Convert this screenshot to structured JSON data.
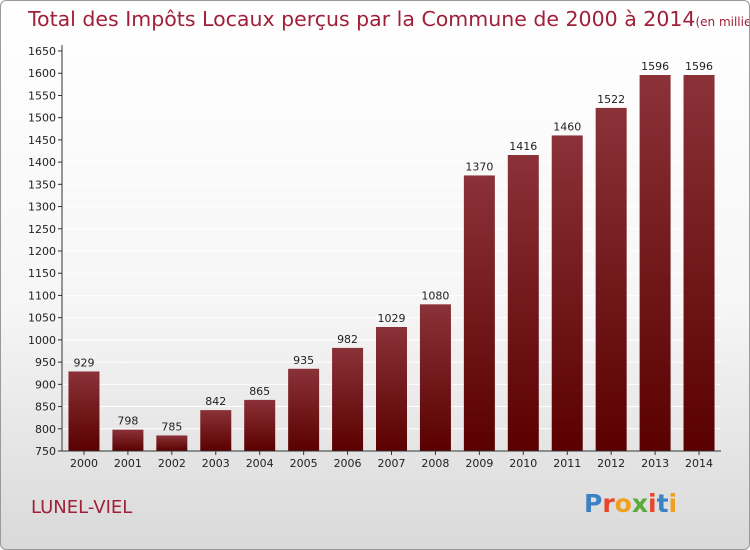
{
  "title": "Total des Impôts Locaux perçus par la Commune de 2000 à 2014",
  "unit": "(en milliers d'€)",
  "commune": "LUNEL-VIEL",
  "logo": {
    "text": "Proxiti",
    "colors": [
      "#3b82c4",
      "#e8462b",
      "#f0a020",
      "#5aaa3a",
      "#e8462b",
      "#3b82c4",
      "#f0a020"
    ]
  },
  "colors": {
    "bar_top": "#8a3238",
    "bar_bottom": "#5a0000",
    "title": "#a0203a",
    "axis": "#333333",
    "grid": "#ffffff"
  },
  "chart_data": {
    "type": "bar",
    "title": "Total des Impôts Locaux perçus par la Commune de 2000 à 2014",
    "ylabel": "en milliers d'€",
    "xlabel": "",
    "categories": [
      "2000",
      "2001",
      "2002",
      "2003",
      "2004",
      "2005",
      "2006",
      "2007",
      "2008",
      "2009",
      "2010",
      "2011",
      "2012",
      "2013",
      "2014"
    ],
    "values": [
      929,
      798,
      785,
      842,
      865,
      935,
      982,
      1029,
      1080,
      1370,
      1416,
      1460,
      1522,
      1596,
      1596
    ],
    "ylim": [
      750,
      1650
    ],
    "yticks": [
      750,
      800,
      850,
      900,
      950,
      1000,
      1050,
      1100,
      1150,
      1200,
      1250,
      1300,
      1350,
      1400,
      1450,
      1500,
      1550,
      1600,
      1650
    ],
    "grid": true
  }
}
